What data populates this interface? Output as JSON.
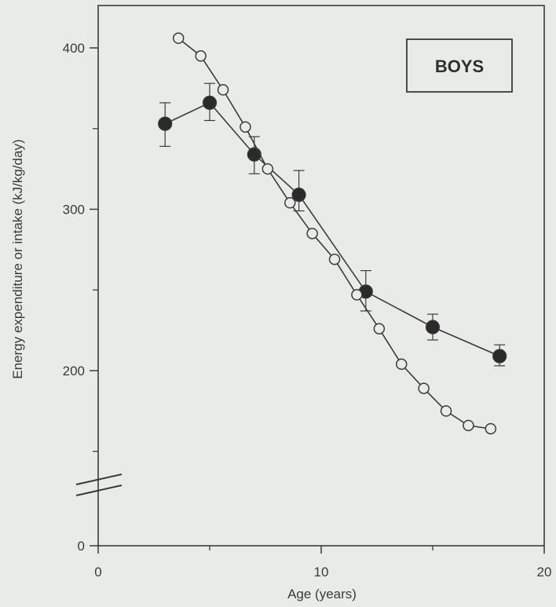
{
  "chart_data": {
    "type": "line",
    "title": "",
    "panel_label": "BOYS",
    "xlabel": "Age (years)",
    "ylabel": "Energy expenditure or intake (kJ/kg/day)",
    "xlim": [
      0,
      20
    ],
    "x_ticks": [
      0,
      10,
      20
    ],
    "x_minor_ticks": [
      5,
      15
    ],
    "y_ticks": [
      0,
      200,
      300,
      400
    ],
    "y_minor_ticks": [
      150,
      250,
      350
    ],
    "y_axis_break": true,
    "grid": false,
    "series": [
      {
        "marker": "filled-circle",
        "x": [
          3,
          5,
          7,
          9,
          12,
          15,
          18
        ],
        "y": [
          353,
          366,
          334,
          309,
          249,
          227,
          209
        ],
        "err_low": [
          339,
          355,
          322,
          299,
          237,
          219,
          203
        ],
        "err_high": [
          366,
          378,
          345,
          324,
          262,
          235,
          216
        ]
      },
      {
        "marker": "open-circle",
        "x": [
          3.6,
          4.6,
          5.6,
          6.6,
          7.6,
          8.6,
          9.6,
          10.6,
          11.6,
          12.6,
          13.6,
          14.6,
          15.6,
          16.6,
          17.6
        ],
        "y": [
          406,
          395,
          374,
          351,
          325,
          304,
          285,
          269,
          247,
          226,
          204,
          189,
          175,
          166,
          164
        ]
      }
    ],
    "colors": {
      "line": "#3a3a3a",
      "axis": "#3a3a3a",
      "box": "#3a3a3a",
      "background": "#e9ebe9"
    }
  }
}
